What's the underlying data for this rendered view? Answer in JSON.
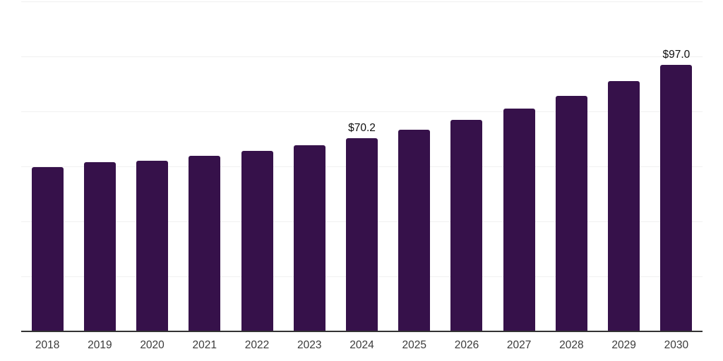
{
  "chart_data": {
    "type": "bar",
    "title": "",
    "xlabel": "",
    "ylabel": "",
    "categories": [
      "2018",
      "2019",
      "2020",
      "2021",
      "2022",
      "2023",
      "2024",
      "2025",
      "2026",
      "2027",
      "2028",
      "2029",
      "2030"
    ],
    "values": [
      59.7,
      61.5,
      62.1,
      63.8,
      65.6,
      67.8,
      70.2,
      73.3,
      77.0,
      80.9,
      85.6,
      91.0,
      97.0
    ],
    "data_labels": {
      "2024": "$70.2",
      "2030": "$97.0"
    },
    "ylim": [
      0,
      120
    ],
    "grid_step": 20,
    "grid": true,
    "legend": false,
    "colors": {
      "bar": "#36114a",
      "grid": "#f0f0f0",
      "axis": "#333333",
      "tick_label": "#3b3b3b",
      "data_label": "#0f0f0f",
      "background": "#ffffff"
    }
  }
}
